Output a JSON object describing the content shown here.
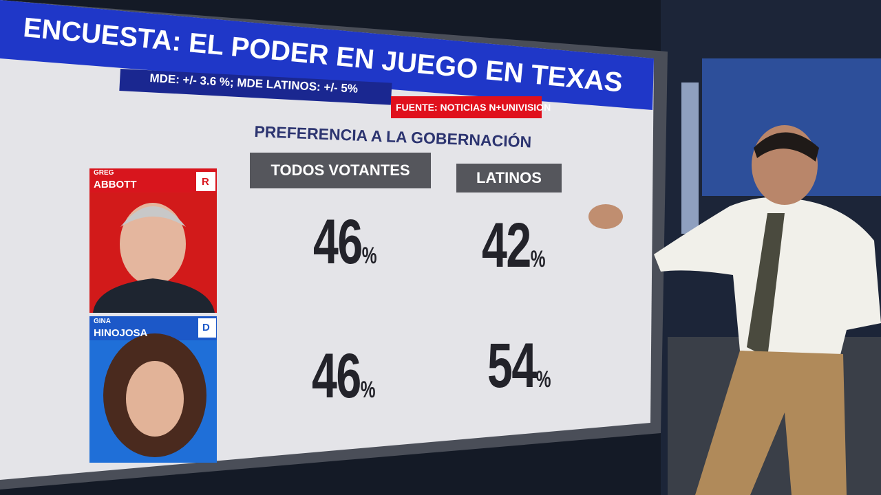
{
  "header": {
    "title": "ENCUESTA:  EL PODER EN JUEGO EN TEXAS",
    "margin_of_error": "MDE: +/- 3.6 %; MDE LATINOS: +/- 5%",
    "source": "FUENTE: NOTICIAS N+UNIVISION"
  },
  "table": {
    "subtitle": "PREFERENCIA A LA GOBERNACIÓN",
    "columns": [
      "TODOS VOTANTES",
      "LATINOS"
    ],
    "rows": [
      {
        "first_name": "GREG",
        "last_name": "ABBOTT",
        "party": "R",
        "cells": [
          {
            "number": "46",
            "unit": "%"
          },
          {
            "number": "42",
            "unit": "%"
          }
        ]
      },
      {
        "first_name": "GINA",
        "last_name": "HINOJOSA",
        "party": "D",
        "cells": [
          {
            "number": "46",
            "unit": "%"
          },
          {
            "number": "54",
            "unit": "%"
          }
        ]
      }
    ]
  }
}
